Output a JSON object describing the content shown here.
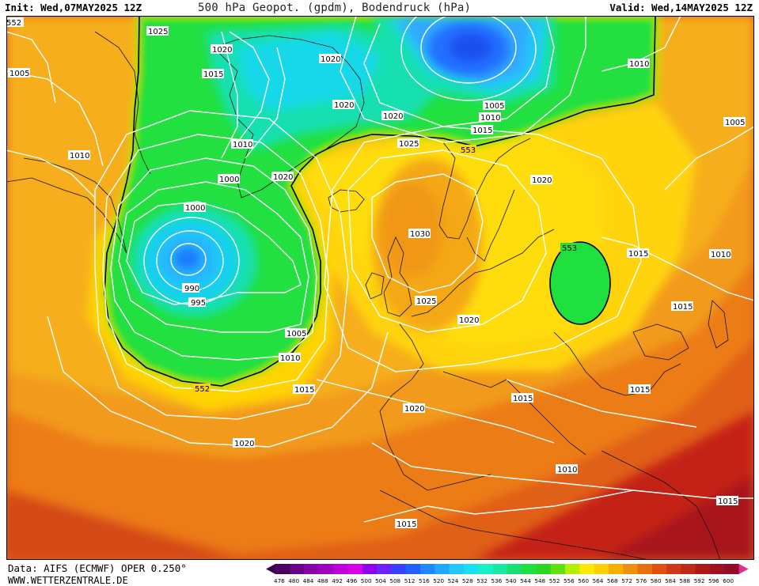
{
  "header": {
    "init": "Init: Wed,07MAY2025 12Z",
    "title": "500 hPa Geopot. (gpdm), Bodendruck (hPa)",
    "valid": "Valid: Wed,14MAY2025 12Z"
  },
  "footer": {
    "source": "Data: AIFS (ECMWF) OPER 0.250°",
    "website": "WWW.WETTERZENTRALE.DE"
  },
  "colors": {
    "deep_low": "#1a66ff",
    "cyan": "#18c8f0",
    "light_blue": "#30a8ff",
    "green_552": "#1ee03c",
    "yellow": "#ffd800",
    "orange_light": "#f8b020",
    "orange": "#f09020",
    "red_orange": "#e05020",
    "dark_red": "#b81418"
  },
  "legend": {
    "ticks": [
      "476",
      "480",
      "484",
      "488",
      "492",
      "496",
      "500",
      "504",
      "508",
      "512",
      "516",
      "520",
      "524",
      "528",
      "532",
      "536",
      "540",
      "544",
      "548",
      "552",
      "556",
      "560",
      "564",
      "568",
      "572",
      "576",
      "580",
      "584",
      "588",
      "592",
      "596",
      "600"
    ],
    "colors": [
      "#4a0060",
      "#6a0088",
      "#8a00a8",
      "#a000c0",
      "#c000d8",
      "#d800e8",
      "#9000e8",
      "#6a20ff",
      "#3a40ff",
      "#2060ff",
      "#2088ff",
      "#20a8ff",
      "#20c8ff",
      "#18e0f0",
      "#18f0c8",
      "#18e8a0",
      "#18e070",
      "#20e040",
      "#28d820",
      "#60e010",
      "#b0f000",
      "#ffe800",
      "#ffd000",
      "#f8b000",
      "#f09010",
      "#e87010",
      "#e05010",
      "#d03818",
      "#c02818",
      "#b01818",
      "#a01020",
      "#900c28"
    ]
  },
  "isobar_labels": [
    "552",
    "1025",
    "1020",
    "1015",
    "1020",
    "1005",
    "1010",
    "1005",
    "1010",
    "1020",
    "1015",
    "1010",
    "1020",
    "1025",
    "553",
    "1010",
    "1005",
    "1000",
    "1020",
    "1030",
    "1000",
    "990",
    "995",
    "1020",
    "553",
    "1015",
    "1010",
    "1025",
    "1020",
    "1015",
    "1005",
    "1010",
    "1015",
    "552",
    "1015",
    "1020",
    "1015",
    "1020",
    "1010",
    "1015",
    "1015"
  ]
}
